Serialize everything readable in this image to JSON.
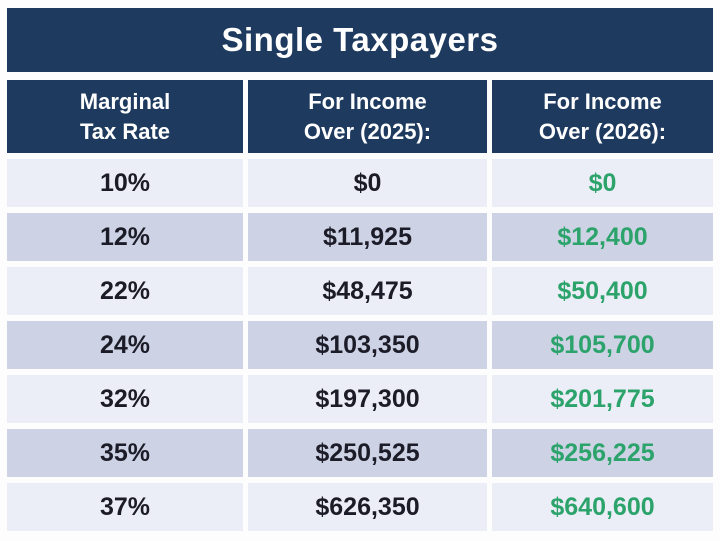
{
  "title": "Single Taxpayers",
  "colors": {
    "background": "#fdfdfe",
    "navy": "#1e3a5f",
    "row_light": "#eceef7",
    "row_dark": "#cdd3e5",
    "green": "#2da36c",
    "text_dark": "#1c1c28"
  },
  "table": {
    "columns": [
      "Marginal\nTax Rate",
      "For Income\nOver (2025):",
      "For Income\nOver (2026):"
    ],
    "rows": [
      {
        "rate": "10%",
        "income_2025": "$0",
        "income_2026": "$0"
      },
      {
        "rate": "12%",
        "income_2025": "$11,925",
        "income_2026": "$12,400"
      },
      {
        "rate": "22%",
        "income_2025": "$48,475",
        "income_2026": "$50,400"
      },
      {
        "rate": "24%",
        "income_2025": "$103,350",
        "income_2026": "$105,700"
      },
      {
        "rate": "32%",
        "income_2025": "$197,300",
        "income_2026": "$201,775"
      },
      {
        "rate": "35%",
        "income_2025": "$250,525",
        "income_2026": "$256,225"
      },
      {
        "rate": "37%",
        "income_2025": "$626,350",
        "income_2026": "$640,600"
      }
    ]
  },
  "chart_data": {
    "type": "table",
    "title": "Single Taxpayers",
    "columns": [
      "Marginal Tax Rate",
      "For Income Over (2025):",
      "For Income Over (2026):"
    ],
    "rows": [
      [
        "10%",
        0,
        0
      ],
      [
        "12%",
        11925,
        12400
      ],
      [
        "22%",
        48475,
        50400
      ],
      [
        "24%",
        103350,
        105700
      ],
      [
        "32%",
        197300,
        201775
      ],
      [
        "35%",
        250525,
        256225
      ],
      [
        "37%",
        626350,
        640600
      ]
    ],
    "notes": "2026 column values rendered in green; header and title bars navy; rows alternate pale lavender / periwinkle gray"
  }
}
